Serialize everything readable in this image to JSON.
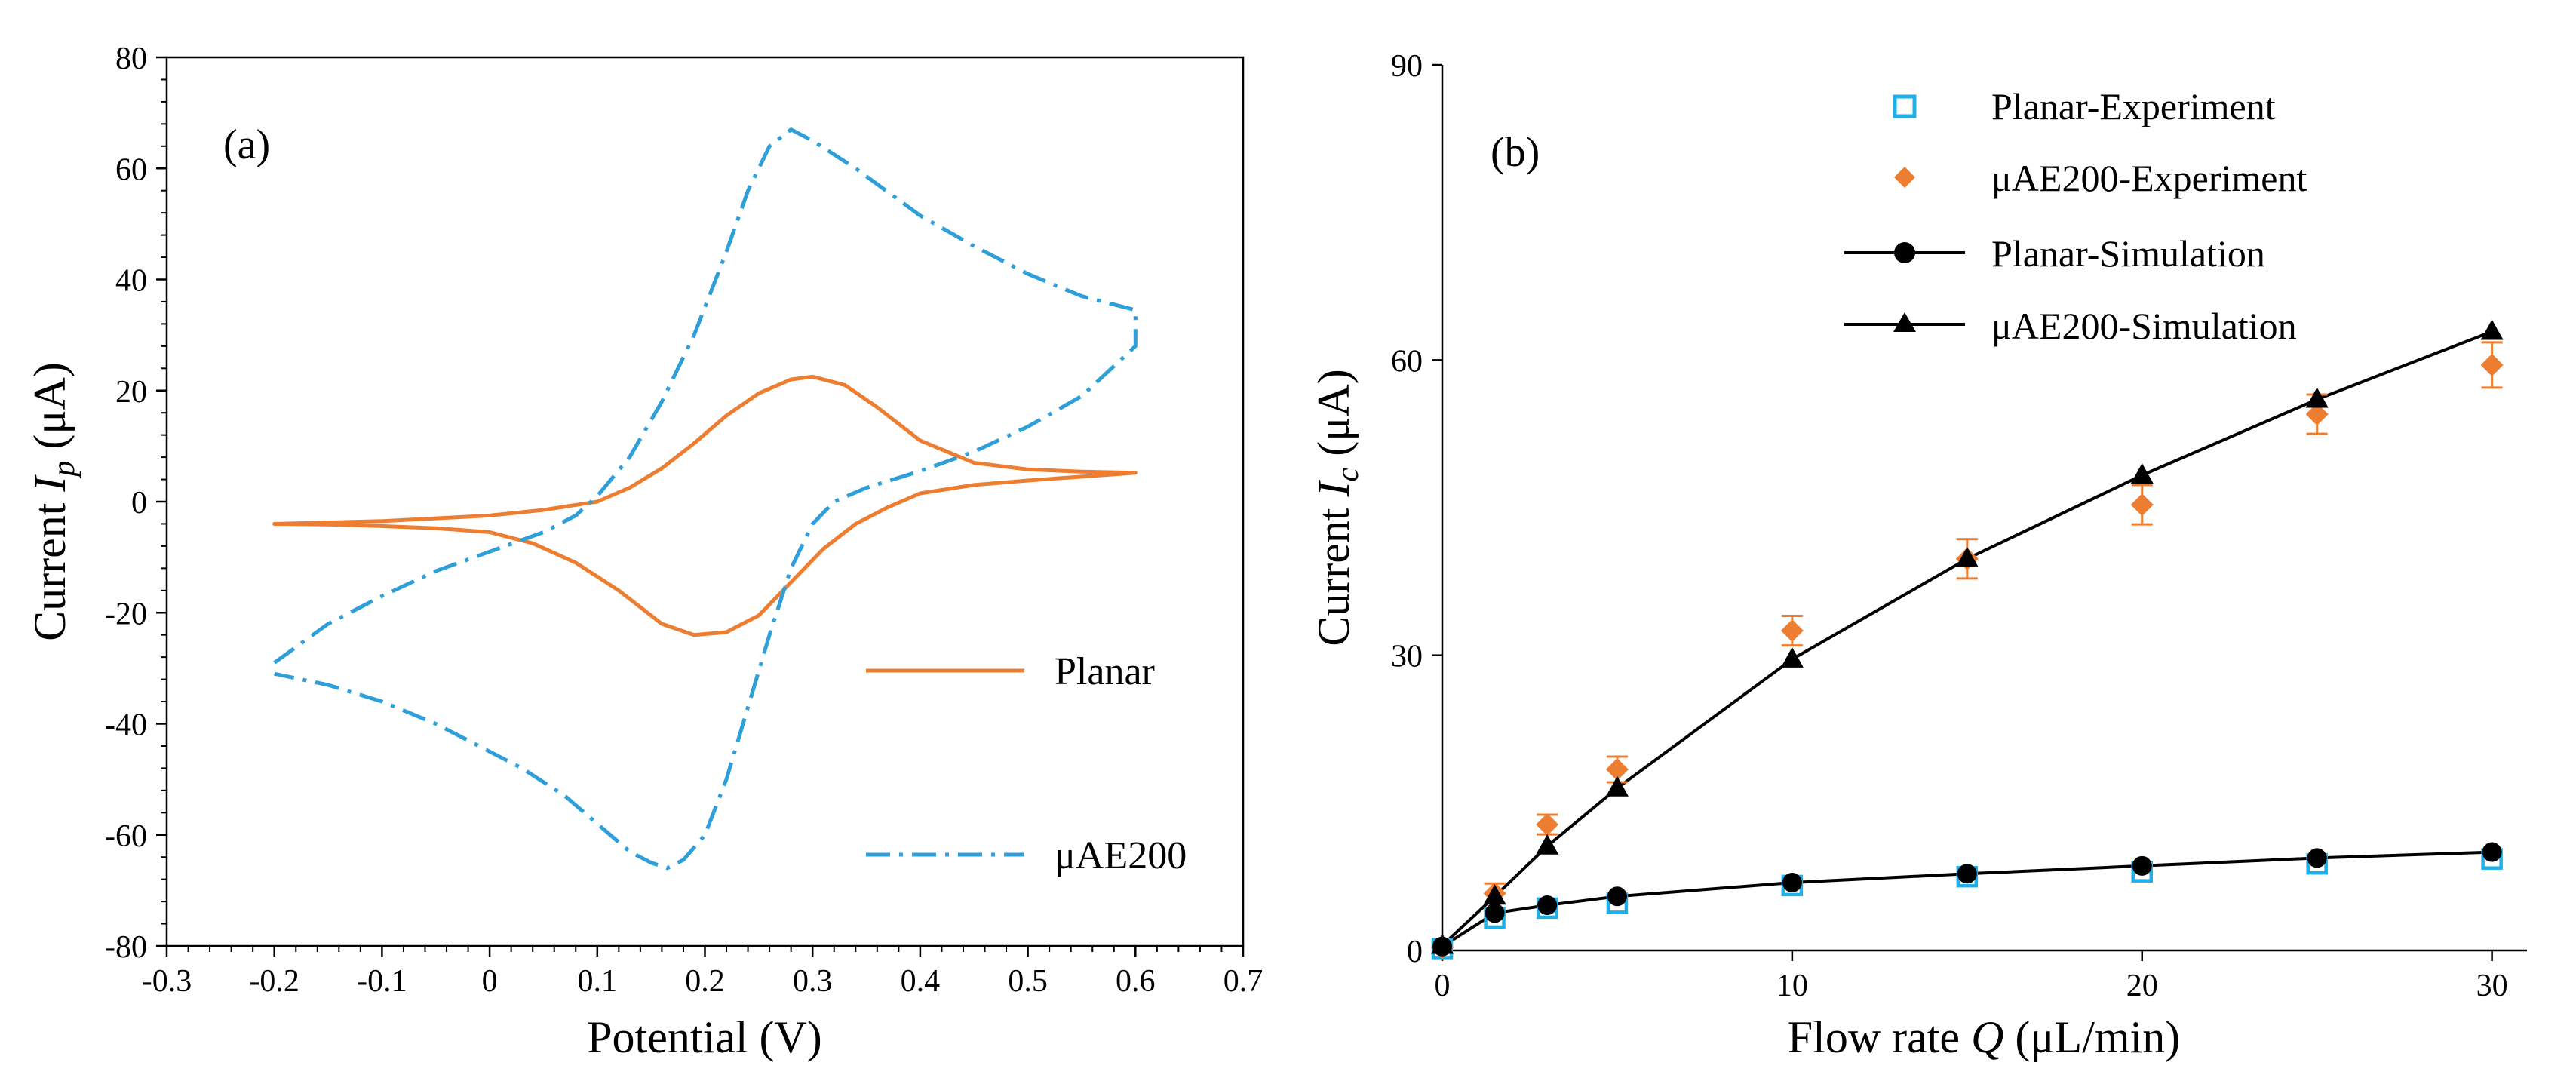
{
  "colors": {
    "orange": "#ED7D31",
    "blue": "#2E9FD8",
    "cyan": "#1EB0E8",
    "black": "#000000"
  },
  "chart_data": [
    {
      "type": "line",
      "panel_label": "(a)",
      "xlabel": "Potential (V)",
      "ylabel_prefix": "Current ",
      "ylabel_var": "I",
      "ylabel_sub": "p",
      "ylabel_unit": " (μA)",
      "xlim": [
        -0.3,
        0.7
      ],
      "ylim": [
        -80,
        80
      ],
      "x_ticks": [
        "-0.3",
        "-0.2",
        "-0.1",
        "0",
        "0.1",
        "0.2",
        "0.3",
        "0.4",
        "0.5",
        "0.6",
        "0.7"
      ],
      "y_ticks": [
        "-80",
        "-60",
        "-40",
        "-20",
        "0",
        "20",
        "40",
        "60",
        "80"
      ],
      "legend_position": "bottom-right",
      "series": [
        {
          "name": "Planar",
          "style": "solid",
          "color": "#ED7D31",
          "x": [
            -0.2,
            -0.1,
            0.0,
            0.05,
            0.1,
            0.13,
            0.16,
            0.19,
            0.22,
            0.25,
            0.28,
            0.3,
            0.33,
            0.36,
            0.4,
            0.45,
            0.5,
            0.55,
            0.6,
            0.6,
            0.55,
            0.5,
            0.45,
            0.4,
            0.37,
            0.34,
            0.31,
            0.28,
            0.25,
            0.22,
            0.19,
            0.16,
            0.12,
            0.08,
            0.04,
            0.0,
            -0.05,
            -0.1,
            -0.15,
            -0.2
          ],
          "y": [
            -4.0,
            -3.5,
            -2.5,
            -1.5,
            0.0,
            2.5,
            6.0,
            10.5,
            15.5,
            19.5,
            22.0,
            22.5,
            21.0,
            17.0,
            11.0,
            7.0,
            5.8,
            5.4,
            5.2,
            5.2,
            4.5,
            3.8,
            3.0,
            1.5,
            -1.0,
            -4.0,
            -8.5,
            -14.5,
            -20.5,
            -23.5,
            -24.0,
            -22.0,
            -16.0,
            -11.0,
            -7.5,
            -5.5,
            -4.8,
            -4.4,
            -4.1,
            -4.0
          ]
        },
        {
          "name": "μAE200",
          "style": "dash-dot",
          "color": "#2E9FD8",
          "x": [
            -0.2,
            -0.15,
            -0.1,
            -0.05,
            0.0,
            0.05,
            0.08,
            0.1,
            0.13,
            0.16,
            0.19,
            0.22,
            0.24,
            0.26,
            0.28,
            0.3,
            0.34,
            0.4,
            0.45,
            0.5,
            0.55,
            0.6,
            0.6,
            0.6,
            0.55,
            0.5,
            0.45,
            0.4,
            0.35,
            0.32,
            0.3,
            0.28,
            0.26,
            0.24,
            0.22,
            0.2,
            0.18,
            0.165,
            0.15,
            0.13,
            0.1,
            0.07,
            0.03,
            0.0,
            -0.05,
            -0.1,
            -0.15,
            -0.2
          ],
          "y": [
            -29.0,
            -22.0,
            -17.0,
            -12.5,
            -9.0,
            -5.5,
            -2.5,
            1.0,
            8.0,
            18.0,
            30.0,
            45.0,
            56.0,
            64.0,
            67.0,
            65.0,
            60.0,
            51.5,
            46.0,
            41.0,
            37.0,
            34.5,
            33.0,
            28.0,
            19.0,
            13.5,
            9.0,
            5.5,
            2.5,
            0.0,
            -4.0,
            -12.0,
            -24.0,
            -37.0,
            -50.0,
            -60.0,
            -64.5,
            -66.0,
            -65.0,
            -63.0,
            -58.0,
            -53.0,
            -48.0,
            -45.0,
            -40.0,
            -36.0,
            -33.0,
            -31.0
          ]
        }
      ]
    },
    {
      "type": "scatter",
      "panel_label": "(b)",
      "xlabel_prefix": "Flow rate ",
      "xlabel_var": "Q",
      "xlabel_unit": " (μL/min)",
      "ylabel_prefix": "Current ",
      "ylabel_var": "I",
      "ylabel_sub": "c",
      "ylabel_unit": " (μA)",
      "xlim": [
        0,
        31
      ],
      "ylim": [
        0,
        90
      ],
      "x_ticks": [
        "0",
        "10",
        "20",
        "30"
      ],
      "y_ticks": [
        "0",
        "30",
        "60",
        "90"
      ],
      "legend_position": "top-left",
      "series": [
        {
          "name": "Planar-Experiment",
          "marker": "square-open",
          "color": "#1EB0E8",
          "x": [
            0,
            1.5,
            3,
            5,
            10,
            15,
            20,
            25,
            30
          ],
          "y": [
            0.2,
            3.3,
            4.3,
            4.8,
            6.6,
            7.5,
            8.0,
            8.8,
            9.3
          ],
          "err": [
            0.4,
            0.5,
            0.5,
            0.5,
            0.6,
            0.6,
            0.7,
            0.7,
            0.7
          ]
        },
        {
          "name": "μAE200-Experiment",
          "marker": "diamond",
          "color": "#ED7D31",
          "x": [
            0,
            1.5,
            3,
            5,
            10,
            15,
            20,
            25,
            30
          ],
          "y": [
            0.3,
            5.8,
            12.8,
            18.4,
            32.5,
            39.8,
            45.3,
            54.5,
            59.5
          ],
          "err": [
            0.5,
            1.0,
            1.0,
            1.3,
            1.5,
            2.0,
            2.0,
            2.0,
            2.3
          ]
        },
        {
          "name": "Planar-Simulation",
          "marker": "circle",
          "color": "#000000",
          "x": [
            0,
            1.5,
            3,
            5,
            10,
            15,
            20,
            25,
            30
          ],
          "y": [
            0.4,
            3.8,
            4.6,
            5.5,
            6.9,
            7.8,
            8.6,
            9.4,
            10.0
          ]
        },
        {
          "name": "μAE200-Simulation",
          "marker": "triangle",
          "color": "#000000",
          "x": [
            0,
            1.5,
            3,
            5,
            10,
            15,
            20,
            25,
            30
          ],
          "y": [
            0.5,
            5.5,
            10.6,
            16.5,
            29.6,
            39.8,
            48.3,
            56.0,
            62.9
          ]
        }
      ]
    }
  ]
}
